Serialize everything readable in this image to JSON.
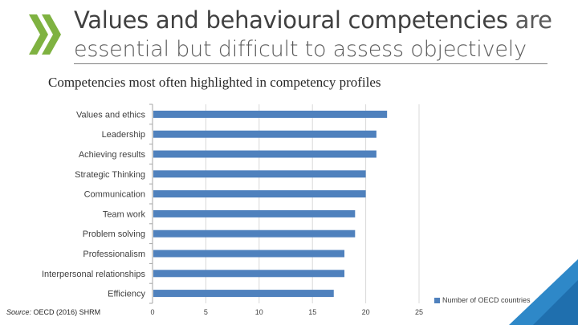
{
  "header": {
    "title_bold": "Values and behavioural competencies",
    "title_rest": "are",
    "title_line2": "essential but difficult to assess objectively"
  },
  "source": {
    "label": "Source:",
    "text": "OECD (2016) SHRM"
  },
  "colors": {
    "bar": "#4f81bd",
    "chevron": "#7fb241",
    "corner": "#2e88c8"
  },
  "icons": [
    "double-chevron-icon"
  ],
  "chart_data": {
    "type": "bar",
    "orientation": "horizontal",
    "title": "Competencies most often highlighted in competency profiles",
    "categories": [
      "Values and ethics",
      "Leadership",
      "Achieving results",
      "Strategic Thinking",
      "Communication",
      "Team work",
      "Problem solving",
      "Professionalism",
      "Interpersonal relationships",
      "Efficiency"
    ],
    "series": [
      {
        "name": "Number of OECD countries",
        "values": [
          22,
          21,
          21,
          20,
          20,
          19,
          19,
          18,
          18,
          17
        ]
      }
    ],
    "xlim": [
      0,
      25
    ],
    "xticks": [
      "0",
      "5",
      "10",
      "15",
      "20",
      "25"
    ],
    "grid": true,
    "legend": "bottom-right"
  }
}
